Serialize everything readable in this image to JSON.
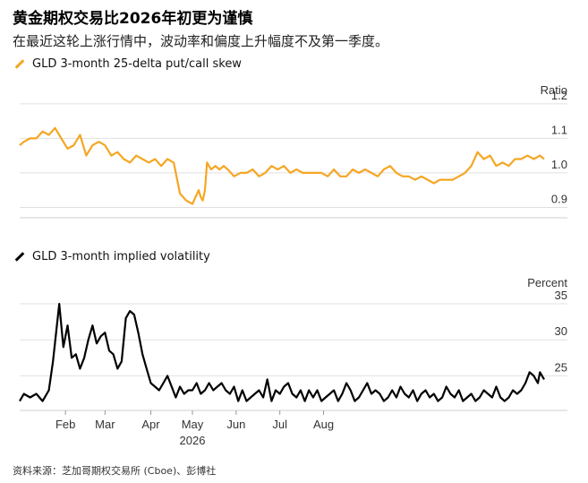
{
  "header": {
    "title": "黄金期权交易比2026年初更为谨慎",
    "subtitle": "在最近这轮上涨行情中，波动率和偏度上升幅度不及第一季度。"
  },
  "source": "资料来源：芝加哥期权交易所 (Cboe)、彭博社",
  "colors": {
    "skew": "#f5a623",
    "vol": "#000000",
    "grid": "#e0e0e0"
  },
  "chart_data": [
    {
      "type": "line",
      "legend": "GLD 3-month 25-delta put/call skew",
      "unit_label": "Ratio",
      "ylim": [
        0.87,
        1.21
      ],
      "yticks": [
        "1.2",
        "1.1",
        "1.0",
        "0.9"
      ],
      "ytick_values": [
        1.2,
        1.1,
        1.0,
        0.9
      ],
      "grid": true,
      "series": [
        {
          "x": [
            0,
            2,
            5,
            8,
            11,
            14,
            17,
            20,
            23,
            26,
            29,
            32,
            35,
            38,
            41,
            44,
            47,
            50,
            53,
            56,
            59,
            62,
            65,
            68,
            71,
            74,
            77,
            80,
            83,
            86,
            87,
            88,
            89,
            90,
            92,
            94,
            96,
            98,
            100,
            103,
            106,
            109,
            112,
            115,
            118,
            121,
            124,
            127,
            130,
            133,
            136,
            139,
            142,
            145,
            148,
            151,
            154,
            157,
            160,
            163,
            166,
            169,
            172,
            175,
            178,
            181,
            184,
            187,
            190,
            193,
            196,
            199,
            202,
            205,
            208,
            211,
            214,
            217,
            220,
            223,
            226,
            229,
            232,
            235,
            238,
            241,
            244,
            247,
            250,
            252
          ],
          "y": [
            1.08,
            1.09,
            1.1,
            1.1,
            1.12,
            1.11,
            1.13,
            1.1,
            1.07,
            1.08,
            1.11,
            1.05,
            1.08,
            1.09,
            1.08,
            1.05,
            1.06,
            1.04,
            1.03,
            1.05,
            1.04,
            1.03,
            1.04,
            1.02,
            1.04,
            1.03,
            0.94,
            0.92,
            0.91,
            0.95,
            0.93,
            0.92,
            0.95,
            1.03,
            1.01,
            1.02,
            1.01,
            1.02,
            1.01,
            0.99,
            1.0,
            1.0,
            1.01,
            0.99,
            1.0,
            1.02,
            1.01,
            1.02,
            1.0,
            1.01,
            1.0,
            1.0,
            1.0,
            1.0,
            0.99,
            1.01,
            0.99,
            0.99,
            1.01,
            1.0,
            1.01,
            1.0,
            0.99,
            1.01,
            1.02,
            1.0,
            0.99,
            0.99,
            0.98,
            0.99,
            0.98,
            0.97,
            0.98,
            0.98,
            0.98,
            0.99,
            1.0,
            1.02,
            1.06,
            1.04,
            1.05,
            1.02,
            1.03,
            1.02,
            1.04,
            1.04,
            1.05,
            1.04,
            1.05,
            1.04
          ]
        }
      ]
    },
    {
      "type": "line",
      "legend": "GLD 3-month implied volatility",
      "unit_label": "Percent",
      "ylim": [
        20.2,
        36.5
      ],
      "yticks": [
        "35",
        "30",
        "25"
      ],
      "ytick_values": [
        35,
        30,
        25
      ],
      "grid": true,
      "series": [
        {
          "x": [
            0,
            2,
            5,
            8,
            11,
            14,
            16,
            19,
            21,
            23,
            25,
            27,
            29,
            31,
            33,
            35,
            37,
            39,
            41,
            43,
            45,
            47,
            49,
            51,
            53,
            55,
            57,
            59,
            61,
            63,
            65,
            67,
            69,
            71,
            73,
            75,
            77,
            79,
            81,
            83,
            85,
            87,
            89,
            91,
            93,
            95,
            97,
            99,
            101,
            103,
            105,
            107,
            109,
            111,
            113,
            115,
            117,
            119,
            121,
            123,
            125,
            127,
            129,
            131,
            133,
            135,
            137,
            139,
            141,
            143,
            145,
            147,
            149,
            151,
            153,
            155,
            157,
            159,
            161,
            163,
            165,
            167,
            169,
            171,
            173,
            175,
            177,
            179,
            181,
            183,
            185,
            187,
            189,
            191,
            193,
            195,
            197,
            199,
            201,
            203,
            205,
            207,
            209,
            211,
            213,
            215,
            217,
            219,
            221,
            223,
            225,
            227,
            229,
            231,
            233,
            235,
            237,
            239,
            241,
            243,
            245,
            247,
            249,
            250,
            252
          ],
          "y": [
            21.5,
            22.5,
            22.0,
            22.5,
            21.5,
            23.0,
            27.0,
            35.0,
            29.0,
            32.0,
            27.5,
            28.0,
            26.0,
            27.5,
            30.0,
            32.0,
            29.5,
            30.5,
            31.0,
            28.5,
            28.0,
            26.0,
            27.0,
            33.0,
            34.0,
            33.5,
            31.0,
            28.0,
            26.0,
            24.0,
            23.5,
            23.0,
            24.0,
            25.0,
            23.5,
            22.0,
            23.5,
            22.5,
            23.0,
            23.0,
            24.0,
            22.5,
            23.0,
            24.0,
            23.0,
            23.5,
            24.0,
            23.0,
            22.5,
            23.5,
            21.5,
            23.0,
            21.5,
            22.0,
            22.5,
            23.0,
            22.0,
            24.5,
            21.5,
            23.0,
            22.5,
            23.5,
            24.0,
            22.5,
            22.0,
            23.0,
            21.5,
            23.0,
            22.0,
            23.0,
            21.5,
            22.0,
            22.5,
            23.0,
            21.5,
            22.5,
            24.0,
            23.0,
            21.5,
            22.0,
            23.0,
            24.0,
            22.5,
            23.0,
            22.5,
            21.5,
            22.0,
            23.0,
            22.0,
            23.5,
            22.5,
            22.0,
            23.0,
            21.5,
            22.5,
            23.0,
            22.0,
            22.5,
            21.5,
            22.0,
            23.5,
            22.5,
            22.0,
            23.0,
            21.5,
            22.0,
            22.5,
            21.5,
            22.0,
            23.0,
            22.5,
            22.0,
            23.5,
            22.0,
            21.5,
            22.0,
            23.0,
            22.5,
            23.0,
            24.0,
            25.5,
            25.0,
            24.0,
            25.5,
            24.5
          ]
        }
      ]
    }
  ],
  "x_axis": {
    "labels": [
      "Feb",
      "Mar",
      "Apr",
      "May",
      "Jun",
      "Jul",
      "Aug"
    ],
    "label_positions": [
      22,
      41,
      63,
      83,
      104,
      125,
      146
    ],
    "year_label": "2026",
    "range": [
      0,
      252
    ]
  }
}
